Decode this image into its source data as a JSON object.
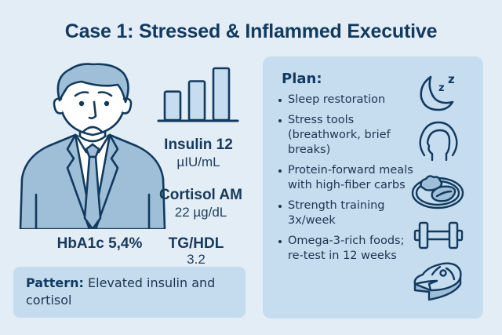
{
  "title": "Case 1: Stressed & Inflammed Executive",
  "figure": {
    "icon": "stressed-executive-illustration",
    "expression": "worried"
  },
  "bar_icon": {
    "icon": "bar-chart-icon",
    "relative_values": [
      0.55,
      0.75,
      1.0
    ]
  },
  "metrics": {
    "insulin": {
      "label": "Insulin 12",
      "value": "µIU/mL"
    },
    "cortisol": {
      "label": "Cortisol AM",
      "value": "22 µg/dL"
    },
    "hba1c": {
      "label": "HbA1c 5,4%"
    },
    "tghdl": {
      "label": "TG/HDL",
      "value": "3.2"
    }
  },
  "pattern": {
    "label": "Pattern:",
    "text": "Elevated insulin and cortisol"
  },
  "plan": {
    "title": "Plan:",
    "items": [
      {
        "text": "Sleep restoration",
        "icon": "moon-sleep-icon"
      },
      {
        "text": "Stress tools (breathwork, brief breaks)",
        "icon": "head-calm-icon"
      },
      {
        "text": "Protein-forward meals with high-fiber carbs",
        "icon": "protein-plate-icon"
      },
      {
        "text": "Strength training 3x/week",
        "icon": "dumbbell-icon"
      },
      {
        "text": "Omega-3-rich foods; re-test in 12 weeks",
        "icon": "salmon-steak-icon"
      }
    ]
  },
  "colors": {
    "background": "#e3edf6",
    "panel": "#c6ddef",
    "ink": "#123a5e",
    "suit": "#9fbfd8"
  }
}
